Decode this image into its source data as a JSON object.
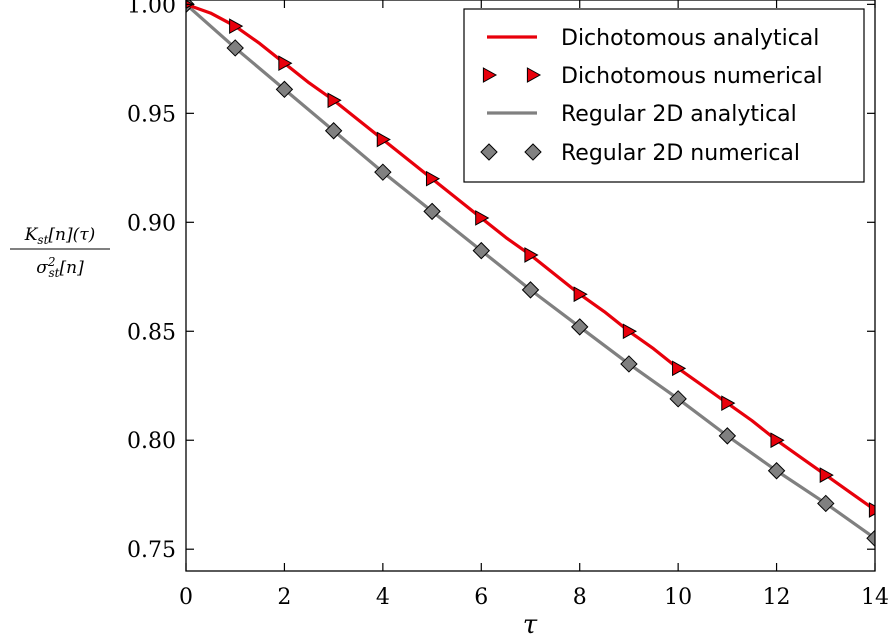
{
  "chart_data": {
    "type": "line",
    "title": "",
    "xlabel": "τ",
    "ylabel": {
      "numerator": "K",
      "numerator_sub": "st",
      "numerator_rest": "[n](τ)",
      "denominator": "σ",
      "denominator_sup": "2",
      "denominator_sub": "st",
      "denominator_rest": "[n]"
    },
    "xlim": [
      0,
      14
    ],
    "ylim": [
      0.74,
      1.002
    ],
    "xticks": [
      0,
      2,
      4,
      6,
      8,
      10,
      12,
      14
    ],
    "xtick_labels": [
      "0",
      "2",
      "4",
      "6",
      "8",
      "10",
      "12",
      "14"
    ],
    "yticks": [
      0.75,
      0.8,
      0.85,
      0.9,
      0.95,
      1.0
    ],
    "ytick_labels": [
      "0.75",
      "0.80",
      "0.85",
      "0.90",
      "0.95",
      "1.00"
    ],
    "grid": false,
    "legend_position": "top-right",
    "series": [
      {
        "name": "Dichotomous analytical",
        "kind": "line",
        "color": "#e8000b",
        "x": [
          0,
          0.5,
          1,
          1.5,
          2,
          2.5,
          3,
          3.5,
          4,
          4.5,
          5,
          5.5,
          6,
          6.5,
          7,
          7.5,
          8,
          8.5,
          9,
          9.5,
          10,
          10.5,
          11,
          11.5,
          12,
          12.5,
          13,
          13.5,
          14
        ],
        "y": [
          1.0,
          0.996,
          0.99,
          0.982,
          0.973,
          0.964,
          0.956,
          0.947,
          0.938,
          0.929,
          0.92,
          0.911,
          0.902,
          0.893,
          0.885,
          0.876,
          0.867,
          0.859,
          0.85,
          0.842,
          0.833,
          0.825,
          0.817,
          0.809,
          0.8,
          0.792,
          0.784,
          0.776,
          0.768
        ]
      },
      {
        "name": "Dichotomous numerical",
        "kind": "marker",
        "marker": "triangle-right",
        "color": "#e8000b",
        "x": [
          0,
          1,
          2,
          3,
          4,
          5,
          6,
          7,
          8,
          9,
          10,
          11,
          12,
          13,
          14
        ],
        "y": [
          1.0,
          0.99,
          0.973,
          0.956,
          0.938,
          0.92,
          0.902,
          0.885,
          0.867,
          0.85,
          0.833,
          0.817,
          0.8,
          0.784,
          0.768
        ]
      },
      {
        "name": "Regular 2D analytical",
        "kind": "line",
        "color": "#808080",
        "x": [
          0,
          1,
          2,
          3,
          4,
          5,
          6,
          7,
          8,
          9,
          10,
          11,
          12,
          13,
          14
        ],
        "y": [
          1.0,
          0.98,
          0.961,
          0.942,
          0.923,
          0.905,
          0.887,
          0.869,
          0.852,
          0.835,
          0.819,
          0.802,
          0.786,
          0.771,
          0.755
        ]
      },
      {
        "name": "Regular 2D numerical",
        "kind": "marker",
        "marker": "diamond",
        "color": "#808080",
        "x": [
          0,
          1,
          2,
          3,
          4,
          5,
          6,
          7,
          8,
          9,
          10,
          11,
          12,
          13,
          14
        ],
        "y": [
          1.0,
          0.98,
          0.961,
          0.942,
          0.923,
          0.905,
          0.887,
          0.869,
          0.852,
          0.835,
          0.819,
          0.802,
          0.786,
          0.771,
          0.755
        ]
      }
    ]
  }
}
